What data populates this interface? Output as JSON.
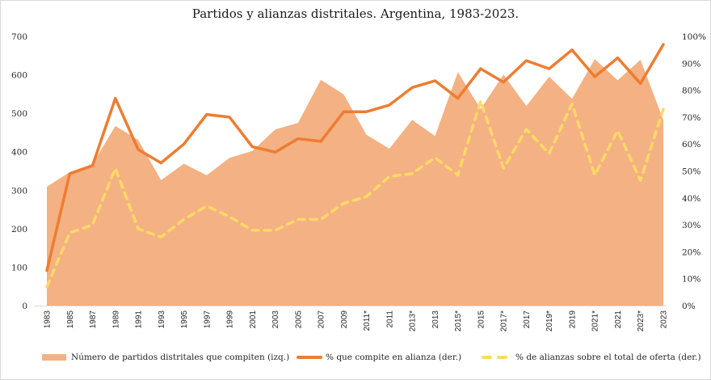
{
  "chart_data": {
    "type": "area+line",
    "title": "Partidos y alianzas distritales. Argentina, 1983-2023.",
    "categories": [
      "1983",
      "1985",
      "1987",
      "1989",
      "1991",
      "1993",
      "1995",
      "1997",
      "1999",
      "2001",
      "2003",
      "2005",
      "2007",
      "2009",
      "2011*",
      "2011",
      "2013*",
      "2013",
      "2015*",
      "2015",
      "2017*",
      "2017",
      "2019*",
      "2019",
      "2021*",
      "2021",
      "2023*",
      "2023"
    ],
    "left_axis": {
      "min": 0,
      "max": 700,
      "step": 100,
      "ticks": [
        "0",
        "100",
        "200",
        "300",
        "400",
        "500",
        "600",
        "700"
      ]
    },
    "right_axis": {
      "min": 0,
      "max": 1,
      "step": 0.1,
      "ticks": [
        "0%",
        "10%",
        "20%",
        "30%",
        "40%",
        "50%",
        "60%",
        "70%",
        "80%",
        "90%",
        "100%"
      ]
    },
    "series": [
      {
        "name": "Número de partidos distritales que compiten (izq.)",
        "type": "area",
        "axis": "left",
        "color": "#F4B183",
        "values": [
          309,
          347,
          368,
          467,
          431,
          326,
          369,
          339,
          384,
          402,
          458,
          475,
          587,
          549,
          444,
          408,
          483,
          441,
          607,
          511,
          601,
          519,
          595,
          538,
          641,
          586,
          639,
          483
        ]
      },
      {
        "name": "% que compite en alianza (der.)",
        "type": "line",
        "axis": "right",
        "color": "#ED7D31",
        "values": [
          0.13,
          0.49,
          0.52,
          0.77,
          0.58,
          0.53,
          0.6,
          0.71,
          0.7,
          0.59,
          0.57,
          0.62,
          0.61,
          0.72,
          0.72,
          0.745,
          0.81,
          0.835,
          0.77,
          0.88,
          0.83,
          0.91,
          0.88,
          0.95,
          0.85,
          0.92,
          0.825,
          0.97
        ]
      },
      {
        "name": "% de alianzas sobre el total de oferta (der.)",
        "type": "line-dashed",
        "axis": "right",
        "color": "#FFD966",
        "values": [
          0.07,
          0.27,
          0.3,
          0.51,
          0.285,
          0.255,
          0.32,
          0.37,
          0.33,
          0.28,
          0.28,
          0.32,
          0.32,
          0.38,
          0.405,
          0.48,
          0.49,
          0.55,
          0.485,
          0.76,
          0.51,
          0.655,
          0.565,
          0.75,
          0.485,
          0.65,
          0.465,
          0.73
        ]
      }
    ],
    "legend_position": "bottom",
    "grid": false
  }
}
